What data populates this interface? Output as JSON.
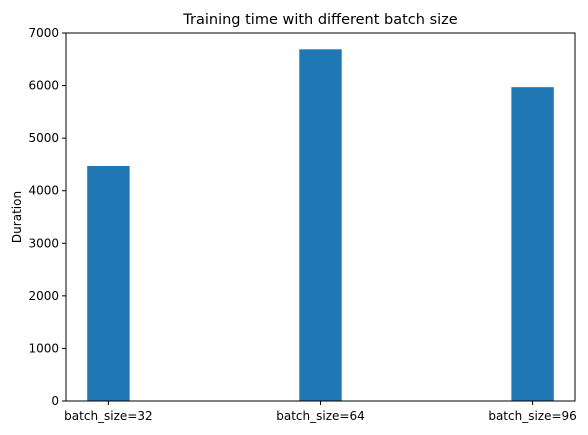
{
  "chart_data": {
    "type": "bar",
    "title": "Training time with different batch size",
    "xlabel": "",
    "ylabel": "Duration",
    "categories": [
      "batch_size=32",
      "batch_size=64",
      "batch_size=96"
    ],
    "values": [
      4470,
      6690,
      5970
    ],
    "ylim": [
      0,
      7000
    ],
    "yticks": [
      0,
      1000,
      2000,
      3000,
      4000,
      5000,
      6000,
      7000
    ],
    "bar_color": "#1f77b4",
    "grid": false,
    "legend": "none"
  }
}
